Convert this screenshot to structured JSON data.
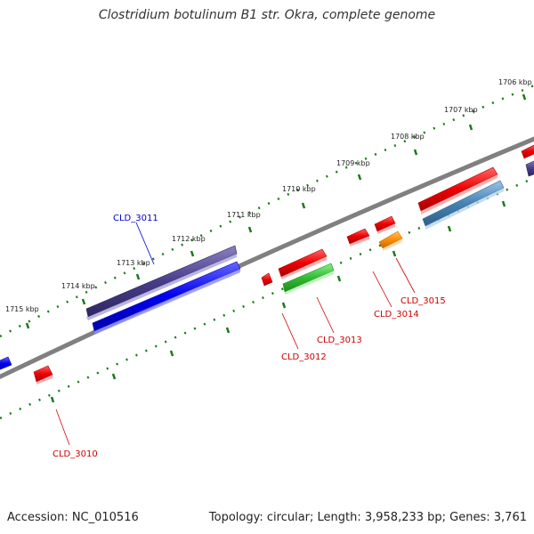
{
  "title": "Clostridium botulinum B1 str. Okra, complete genome",
  "footer": {
    "accession": "Accession: NC_010516",
    "stats": "Topology: circular; Length: 3,958,233 bp; Genes: 3,761"
  },
  "ruler": {
    "unit": "kbp",
    "ticks": [
      {
        "label": "1706 kbp"
      },
      {
        "label": "1707 kbp"
      },
      {
        "label": "1708 kbp"
      },
      {
        "label": "1709 kbp"
      },
      {
        "label": "1710 kbp"
      },
      {
        "label": "1711 kbp"
      },
      {
        "label": "1712 kbp"
      },
      {
        "label": "1713 kbp"
      },
      {
        "label": "1714 kbp"
      },
      {
        "label": "1715 kbp"
      }
    ]
  },
  "genes": [
    {
      "label": "CLD_3010",
      "color": "#cc0000"
    },
    {
      "label": "CLD_3011",
      "color": "#0000cc"
    },
    {
      "label": "CLD_3012",
      "color": "#cc0000"
    },
    {
      "label": "CLD_3013",
      "color": "#cc0000"
    },
    {
      "label": "CLD_3014",
      "color": "#cc0000"
    },
    {
      "label": "CLD_3015",
      "color": "#cc0000"
    }
  ],
  "colors": {
    "backbone": "#808080",
    "ruler_tick": "#1a7a1a",
    "feature_red": "#ee0000",
    "feature_blue": "#0000ee",
    "feature_purple": "#483d8b",
    "feature_green": "#33bb33",
    "feature_orange": "#ff8c00",
    "feature_steel": "#4682b4"
  }
}
